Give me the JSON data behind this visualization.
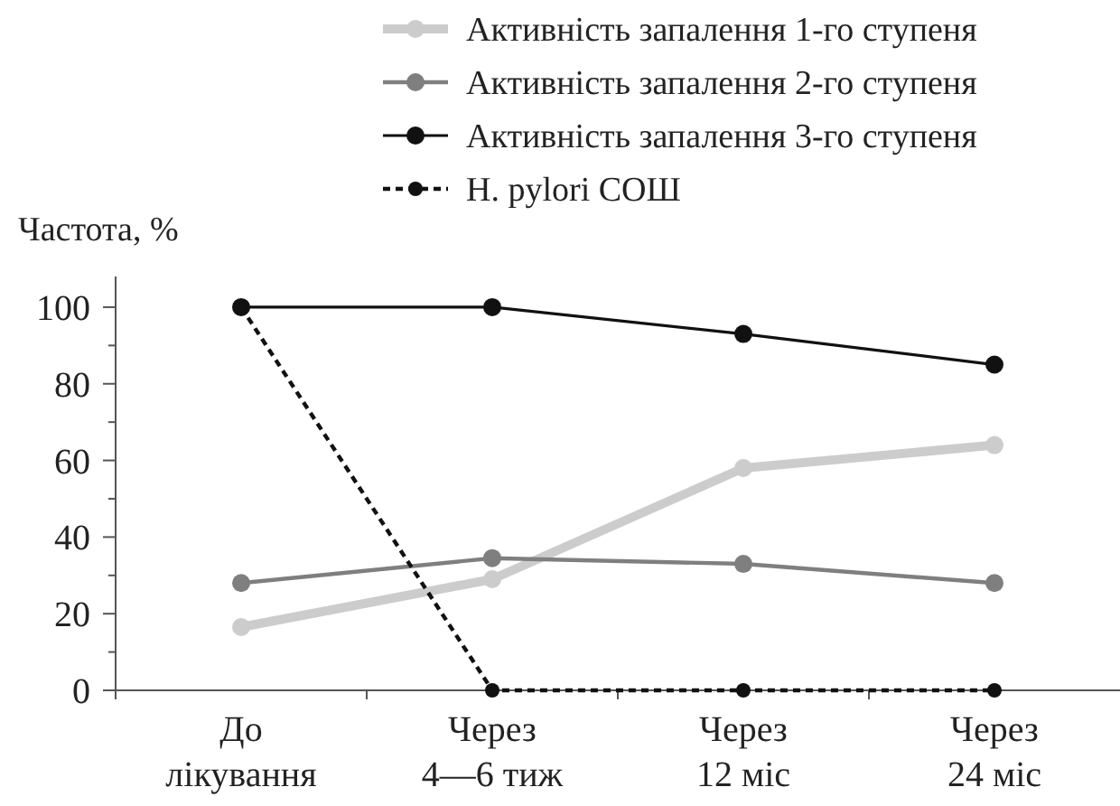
{
  "chart_data": {
    "type": "line",
    "ylabel": "Частота, %",
    "categories": [
      "До лікування",
      "Через 4—6 тиж",
      "Через 12 міс",
      "Через 24 міс"
    ],
    "series": [
      {
        "name": "Активність запалення 1-го ступеня",
        "color": "#cccccc",
        "values": [
          16.5,
          29,
          58,
          64
        ]
      },
      {
        "name": "Активність запалення 2-го ступеня",
        "color": "#7f7f7f",
        "values": [
          28,
          34.5,
          33,
          28
        ]
      },
      {
        "name": "Активність запалення 3-го ступеня",
        "color": "#111111",
        "values": [
          100,
          100,
          93,
          85
        ]
      },
      {
        "name": "H. pylori СОШ",
        "color": "#111111",
        "values": [
          100,
          0,
          0,
          0
        ],
        "line_style": "dashed"
      }
    ],
    "ylim": [
      0,
      108
    ],
    "yticks": [
      0,
      {
        "value": 10,
        "label": null
      },
      20,
      {
        "value": 30,
        "label": null
      },
      40,
      {
        "value": 50,
        "label": null
      },
      60,
      {
        "value": 70,
        "label": null
      },
      80,
      {
        "value": 90,
        "label": null
      },
      100
    ],
    "grid": false,
    "legend": "top right",
    "marker": "circle",
    "line_style": "solid"
  }
}
